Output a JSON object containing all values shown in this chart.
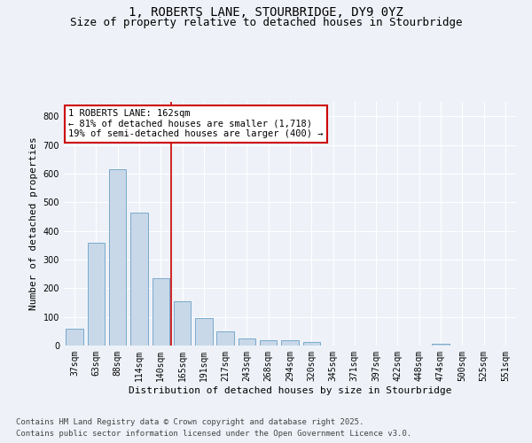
{
  "title_line1": "1, ROBERTS LANE, STOURBRIDGE, DY9 0YZ",
  "title_line2": "Size of property relative to detached houses in Stourbridge",
  "xlabel": "Distribution of detached houses by size in Stourbridge",
  "ylabel": "Number of detached properties",
  "categories": [
    "37sqm",
    "63sqm",
    "88sqm",
    "114sqm",
    "140sqm",
    "165sqm",
    "191sqm",
    "217sqm",
    "243sqm",
    "268sqm",
    "294sqm",
    "320sqm",
    "345sqm",
    "371sqm",
    "397sqm",
    "422sqm",
    "448sqm",
    "474sqm",
    "500sqm",
    "525sqm",
    "551sqm"
  ],
  "values": [
    58,
    360,
    615,
    465,
    235,
    155,
    95,
    50,
    25,
    20,
    20,
    13,
    0,
    0,
    0,
    0,
    0,
    5,
    0,
    0,
    0
  ],
  "bar_color": "#c8d8e8",
  "bar_edge_color": "#6a9fc8",
  "vline_pos": 4.5,
  "vline_color": "#cc0000",
  "annotation_text": "1 ROBERTS LANE: 162sqm\n← 81% of detached houses are smaller (1,718)\n19% of semi-detached houses are larger (400) →",
  "annotation_box_color": "#ffffff",
  "annotation_box_edge": "#cc0000",
  "ylim": [
    0,
    850
  ],
  "yticks": [
    0,
    100,
    200,
    300,
    400,
    500,
    600,
    700,
    800
  ],
  "background_color": "#eef2f8",
  "plot_background": "#eef2f8",
  "grid_color": "#ffffff",
  "footer_line1": "Contains HM Land Registry data © Crown copyright and database right 2025.",
  "footer_line2": "Contains public sector information licensed under the Open Government Licence v3.0.",
  "title_fontsize": 10,
  "subtitle_fontsize": 9,
  "axis_label_fontsize": 8,
  "tick_fontsize": 7,
  "annotation_fontsize": 7.5,
  "footer_fontsize": 6.5
}
